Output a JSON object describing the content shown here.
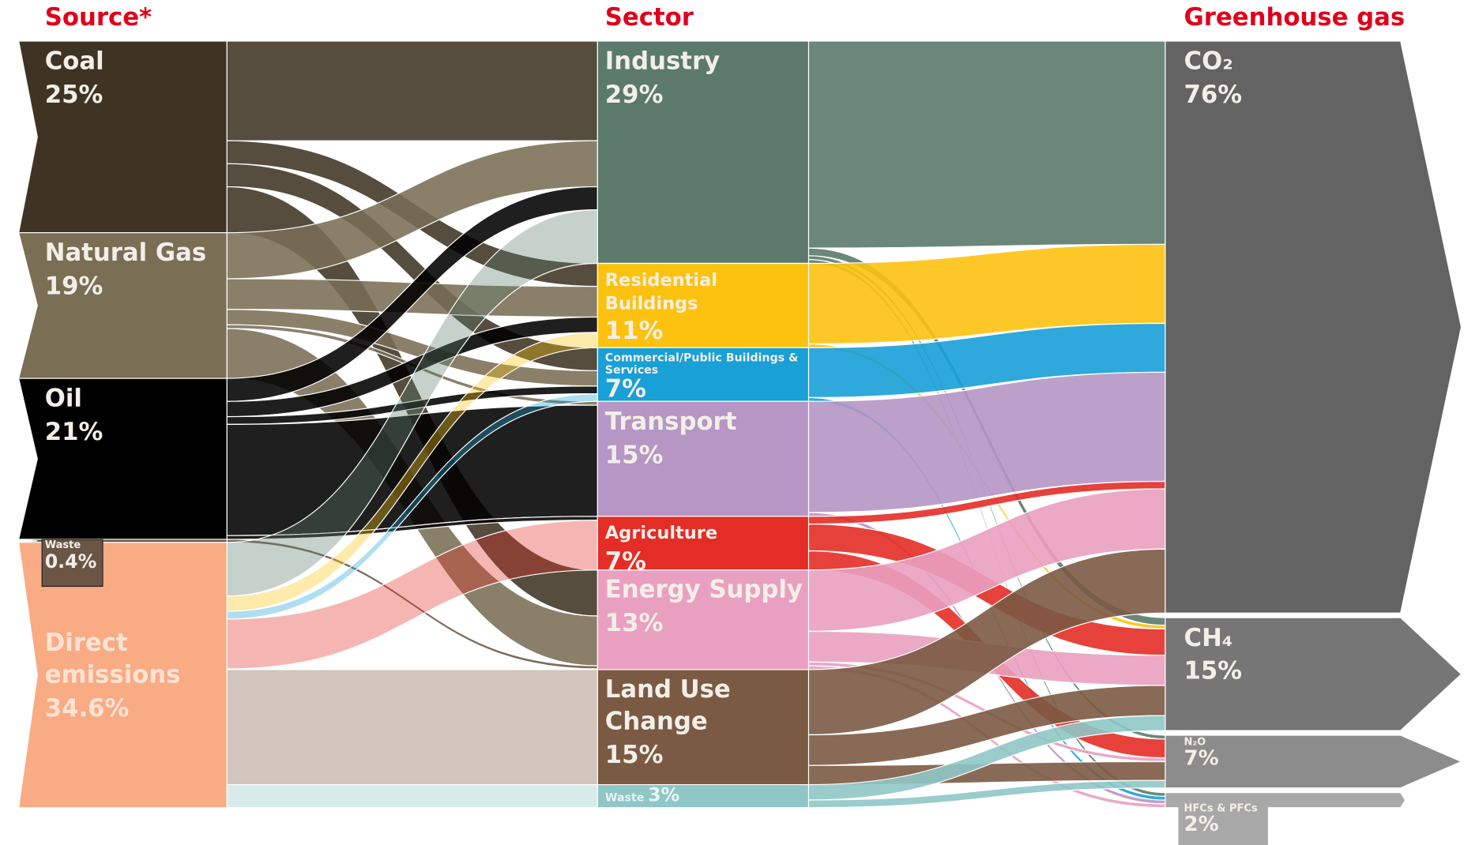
{
  "chart_data": {
    "type": "sankey",
    "headers": [
      "Source*",
      "Sector",
      "Greenhouse gas"
    ],
    "nodes": [
      {
        "label": "Coal",
        "value": 25,
        "value_label": "25%",
        "color": "#3f3424",
        "column": 0
      },
      {
        "label": "Natural Gas",
        "value": 19,
        "value_label": "19%",
        "color": "#7a6e55",
        "column": 0
      },
      {
        "label": "Oil",
        "value": 21,
        "value_label": "21%",
        "color": "#000000",
        "column": 0
      },
      {
        "label": "Waste",
        "value": 0.4,
        "value_label": "0.4%",
        "color": "#6b5646",
        "column": 0
      },
      {
        "label": "Direct emissions",
        "value": 34.6,
        "value_label": "34.6%",
        "color": "#f9ab84",
        "column": 0,
        "link_color": "target"
      },
      {
        "label": "Industry",
        "value": 29,
        "value_label": "29%",
        "color": "#5b7a6c",
        "column": 1
      },
      {
        "label": "Residential Buildings",
        "value": 11,
        "value_label": "11%",
        "color": "#fdc20f",
        "column": 1
      },
      {
        "label": "Commercial/Public Buildings & Services",
        "value": 7,
        "value_label": "7%",
        "color": "#18a0d7",
        "column": 1
      },
      {
        "label": "Transport",
        "value": 15,
        "value_label": "15%",
        "color": "#b596c4",
        "column": 1
      },
      {
        "label": "Agriculture",
        "value": 7,
        "value_label": "7%",
        "color": "#e32d26",
        "column": 1
      },
      {
        "label": "Energy Supply",
        "value": 13,
        "value_label": "13%",
        "color": "#e9a0c0",
        "column": 1
      },
      {
        "label": "Land Use Change",
        "value": 15,
        "value_label": "15%",
        "color": "#7b5a44",
        "column": 1
      },
      {
        "label": "Waste",
        "value": 3,
        "value_label": "3%",
        "color": "#8fc6c6",
        "column": 1
      },
      {
        "label": "CO₂",
        "value": 76,
        "value_label": "76%",
        "color": "#636363",
        "column": 2
      },
      {
        "label": "CH₄",
        "value": 15,
        "value_label": "15%",
        "color": "#767676",
        "column": 2
      },
      {
        "label": "N₂O",
        "value": 7,
        "value_label": "7%",
        "color": "#8c8c8c",
        "column": 2
      },
      {
        "label": "HFCs & PFCs",
        "value": 2,
        "value_label": "2%",
        "color": "#a8a8a8",
        "column": 2
      }
    ],
    "links": [
      {
        "source": 0,
        "target": 5,
        "value": 13
      },
      {
        "source": 0,
        "target": 6,
        "value": 3
      },
      {
        "source": 0,
        "target": 7,
        "value": 3
      },
      {
        "source": 0,
        "target": 10,
        "value": 6
      },
      {
        "source": 1,
        "target": 5,
        "value": 6
      },
      {
        "source": 1,
        "target": 6,
        "value": 4
      },
      {
        "source": 1,
        "target": 7,
        "value": 2
      },
      {
        "source": 1,
        "target": 8,
        "value": 0.5
      },
      {
        "source": 1,
        "target": 10,
        "value": 6.5
      },
      {
        "source": 2,
        "target": 5,
        "value": 3
      },
      {
        "source": 2,
        "target": 6,
        "value": 2
      },
      {
        "source": 2,
        "target": 7,
        "value": 1
      },
      {
        "source": 2,
        "target": 8,
        "value": 14.5
      },
      {
        "source": 2,
        "target": 9,
        "value": 0.5
      },
      {
        "source": 3,
        "target": 10,
        "value": 0.4
      },
      {
        "source": 4,
        "target": 5,
        "value": 7
      },
      {
        "source": 4,
        "target": 6,
        "value": 2
      },
      {
        "source": 4,
        "target": 7,
        "value": 1
      },
      {
        "source": 4,
        "target": 9,
        "value": 6.5
      },
      {
        "source": 4,
        "target": 10,
        "value": 0.1
      },
      {
        "source": 4,
        "target": 11,
        "value": 15
      },
      {
        "source": 4,
        "target": 12,
        "value": 3
      },
      {
        "source": 5,
        "target": 13,
        "value": 27
      },
      {
        "source": 5,
        "target": 14,
        "value": 1
      },
      {
        "source": 5,
        "target": 15,
        "value": 0.5
      },
      {
        "source": 5,
        "target": 16,
        "value": 0.5
      },
      {
        "source": 6,
        "target": 13,
        "value": 10.5
      },
      {
        "source": 6,
        "target": 14,
        "value": 0.5
      },
      {
        "source": 7,
        "target": 13,
        "value": 6.5
      },
      {
        "source": 7,
        "target": 16,
        "value": 0.5
      },
      {
        "source": 8,
        "target": 13,
        "value": 14.5
      },
      {
        "source": 8,
        "target": 16,
        "value": 0.5
      },
      {
        "source": 9,
        "target": 13,
        "value": 1
      },
      {
        "source": 9,
        "target": 14,
        "value": 3.5
      },
      {
        "source": 9,
        "target": 15,
        "value": 2.5
      },
      {
        "source": 10,
        "target": 13,
        "value": 8
      },
      {
        "source": 10,
        "target": 14,
        "value": 4
      },
      {
        "source": 10,
        "target": 15,
        "value": 0.5
      },
      {
        "source": 10,
        "target": 16,
        "value": 0.5
      },
      {
        "source": 11,
        "target": 13,
        "value": 8.5
      },
      {
        "source": 11,
        "target": 14,
        "value": 4
      },
      {
        "source": 11,
        "target": 15,
        "value": 2.5
      },
      {
        "source": 12,
        "target": 14,
        "value": 2
      },
      {
        "source": 12,
        "target": 15,
        "value": 1
      }
    ]
  }
}
